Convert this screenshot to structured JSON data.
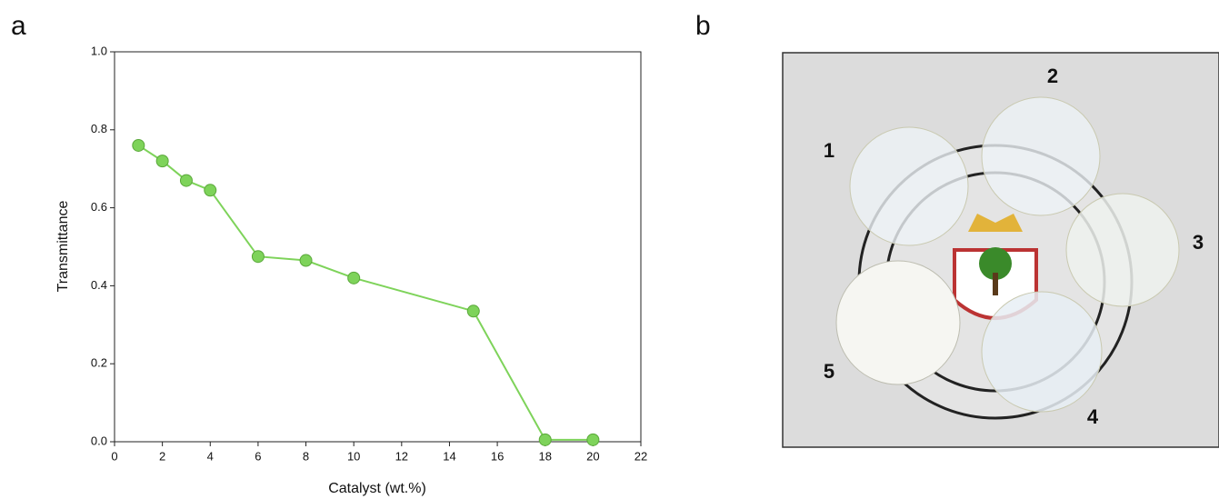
{
  "chart_data": {
    "type": "line",
    "panel_label": "a",
    "xlabel": "Catalyst (wt.%)",
    "ylabel": "Transmittance",
    "x": [
      1,
      2,
      3,
      4,
      6,
      8,
      10,
      15,
      18,
      20
    ],
    "series": [
      {
        "color": "#7ed35a",
        "values": [
          0.76,
          0.72,
          0.67,
          0.645,
          0.475,
          0.465,
          0.42,
          0.335,
          0.005,
          0.005
        ]
      }
    ],
    "xlim": [
      0,
      22
    ],
    "xticks": [
      0,
      2,
      4,
      6,
      8,
      10,
      12,
      14,
      16,
      18,
      20,
      22
    ],
    "ylim": [
      0,
      1
    ],
    "yticks": [
      {
        "value": 0,
        "label": "0.0"
      },
      0.2,
      0.4,
      0.6,
      0.8,
      {
        "value": 1,
        "label": "1.0"
      }
    ]
  },
  "photo": {
    "panel_label": "b",
    "sample_labels": [
      "1",
      "2",
      "3",
      "4",
      "5"
    ]
  }
}
